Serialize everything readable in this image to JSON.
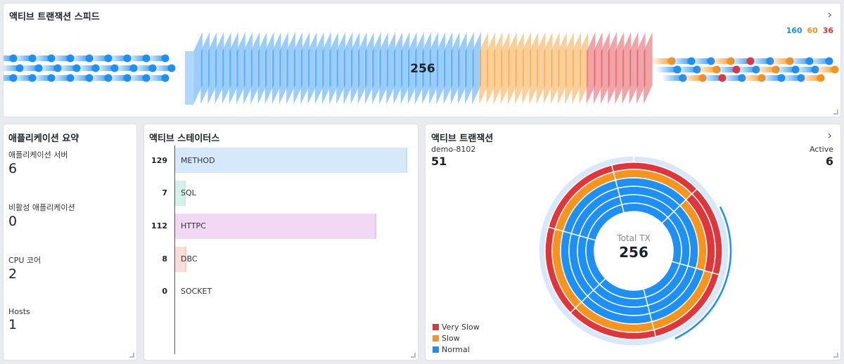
{
  "colors": {
    "normal": "#1e90f5",
    "slow": "#f7941d",
    "very_slow": "#e0353b",
    "method": "#d6e9fa",
    "sql": "#d4f2ec",
    "httpc": "#f3d8f6",
    "dbc": "#fadcd9"
  },
  "speed": {
    "title": "액티브 트랜잭션 스피드",
    "total": "256",
    "legend": {
      "normal": "160",
      "slow": "60",
      "very_slow": "36"
    },
    "chevron_icon": "chevron-right-icon"
  },
  "summary": {
    "title": "애플리케이션 요약",
    "items": [
      {
        "label": "애플리케이션 서버",
        "value": "6"
      },
      {
        "label": "비활성 애플리케이션",
        "value": "0"
      },
      {
        "label": "CPU 코어",
        "value": "2"
      },
      {
        "label": "Hosts",
        "value": "1"
      }
    ]
  },
  "status": {
    "title": "액티브 스테이터스",
    "rows": [
      {
        "name": "METHOD",
        "count": "129",
        "value": 129
      },
      {
        "name": "SQL",
        "count": "7",
        "value": 7
      },
      {
        "name": "HTTPC",
        "count": "112",
        "value": 112
      },
      {
        "name": "DBC",
        "count": "8",
        "value": 8
      },
      {
        "name": "SOCKET",
        "count": "0",
        "value": 0
      }
    ]
  },
  "atx": {
    "title": "액티브 트랜잭션",
    "agent_label": "demo-8102",
    "agent_value": "51",
    "active_label": "Active",
    "active_value": "6",
    "center_label": "Total TX",
    "center_value": "256",
    "legend": [
      "Very Slow",
      "Slow",
      "Normal"
    ],
    "chevron_icon": "chevron-right-icon"
  },
  "chart_data": {
    "type": "pie",
    "title": "액티브 트랜잭션",
    "center_label": "Total TX",
    "total": 256,
    "series": [
      {
        "name": "Very Slow",
        "value": 36
      },
      {
        "name": "Slow",
        "value": 60
      },
      {
        "name": "Normal",
        "value": 160
      }
    ],
    "legend": "bottom-left"
  }
}
